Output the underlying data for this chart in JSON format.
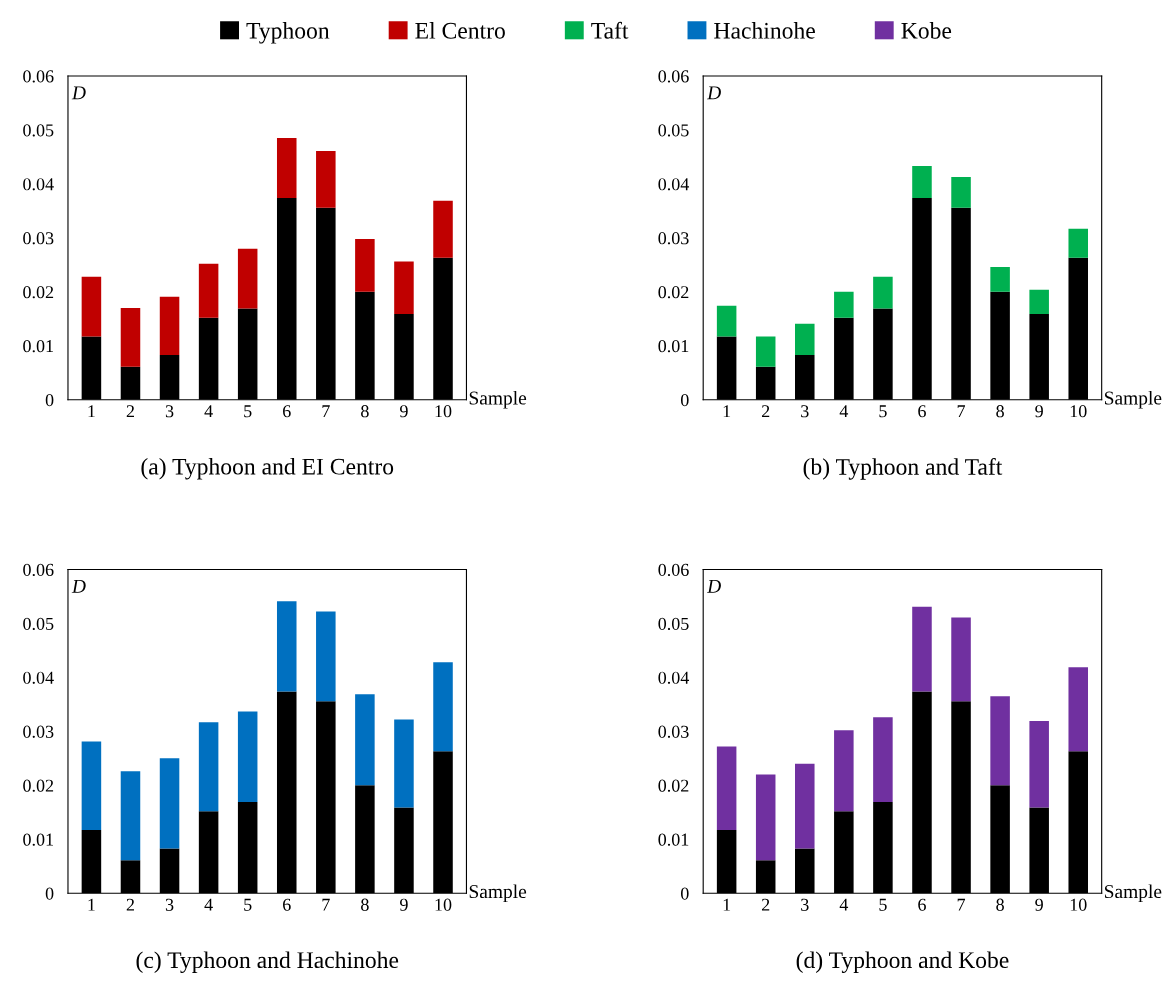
{
  "chart_data": [
    {
      "type": "bar",
      "stacked": true,
      "title": "(a) Typhoon and EI Centro",
      "xlabel": "Sample",
      "ylabel": "D",
      "legend": "top",
      "categories": [
        "1",
        "2",
        "3",
        "4",
        "5",
        "6",
        "7",
        "8",
        "9",
        "10"
      ],
      "ylim": [
        0,
        0.06
      ],
      "yticks": [
        0,
        0.01,
        0.02,
        0.03,
        0.04,
        0.05,
        0.06
      ],
      "series": [
        {
          "name": "Typhoon",
          "color": "#000000",
          "values": [
            0.0117,
            0.0061,
            0.0083,
            0.0152,
            0.0169,
            0.0374,
            0.0356,
            0.02,
            0.0159,
            0.0263
          ]
        },
        {
          "name": "El Centro",
          "color": "#c00000",
          "values": [
            0.0111,
            0.0109,
            0.0108,
            0.01,
            0.0111,
            0.0111,
            0.0105,
            0.0098,
            0.0097,
            0.0106
          ]
        }
      ]
    },
    {
      "type": "bar",
      "stacked": true,
      "title": "(b) Typhoon and Taft",
      "xlabel": "Sample",
      "ylabel": "D",
      "legend": "top",
      "categories": [
        "1",
        "2",
        "3",
        "4",
        "5",
        "6",
        "7",
        "8",
        "9",
        "10"
      ],
      "ylim": [
        0,
        0.06
      ],
      "yticks": [
        0,
        0.01,
        0.02,
        0.03,
        0.04,
        0.05,
        0.06
      ],
      "series": [
        {
          "color": "#000000",
          "values": [
            0.0117,
            0.0061,
            0.0083,
            0.0152,
            0.0169,
            0.0374,
            0.0356,
            0.02,
            0.0159,
            0.0263
          ]
        },
        {
          "name": "Taft",
          "color": "#00b050",
          "values": [
            0.0057,
            0.0056,
            0.0058,
            0.0048,
            0.0059,
            0.0059,
            0.0057,
            0.0046,
            0.0045,
            0.0054
          ]
        }
      ]
    },
    {
      "type": "bar",
      "stacked": true,
      "title": "(c) Typhoon and Hachinohe",
      "xlabel": "Sample",
      "ylabel": "D",
      "legend": "top",
      "categories": [
        "1",
        "2",
        "3",
        "4",
        "5",
        "6",
        "7",
        "8",
        "9",
        "10"
      ],
      "ylim": [
        0,
        0.06
      ],
      "yticks": [
        0,
        0.01,
        0.02,
        0.03,
        0.04,
        0.05,
        0.06
      ],
      "series": [
        {
          "color": "#000000",
          "values": [
            0.0117,
            0.0061,
            0.0083,
            0.0152,
            0.0169,
            0.0374,
            0.0356,
            0.02,
            0.0159,
            0.0263
          ]
        },
        {
          "name": "Hachinohe",
          "color": "#0070c0",
          "values": [
            0.0164,
            0.0165,
            0.0167,
            0.0165,
            0.0168,
            0.0167,
            0.0166,
            0.0169,
            0.0163,
            0.0165
          ]
        }
      ]
    },
    {
      "type": "bar",
      "stacked": true,
      "title": "(d) Typhoon and Kobe",
      "xlabel": "Sample",
      "ylabel": "D",
      "legend": "top",
      "categories": [
        "1",
        "2",
        "3",
        "4",
        "5",
        "6",
        "7",
        "8",
        "9",
        "10"
      ],
      "ylim": [
        0,
        0.06
      ],
      "yticks": [
        0,
        0.01,
        0.02,
        0.03,
        0.04,
        0.05,
        0.06
      ],
      "series": [
        {
          "color": "#000000",
          "values": [
            0.0117,
            0.0061,
            0.0083,
            0.0152,
            0.0169,
            0.0374,
            0.0356,
            0.02,
            0.0159,
            0.0263
          ]
        },
        {
          "name": "Kobe",
          "color": "#7030a0",
          "values": [
            0.0155,
            0.0159,
            0.0157,
            0.015,
            0.0157,
            0.0157,
            0.0155,
            0.0165,
            0.016,
            0.0156
          ]
        }
      ]
    }
  ]
}
